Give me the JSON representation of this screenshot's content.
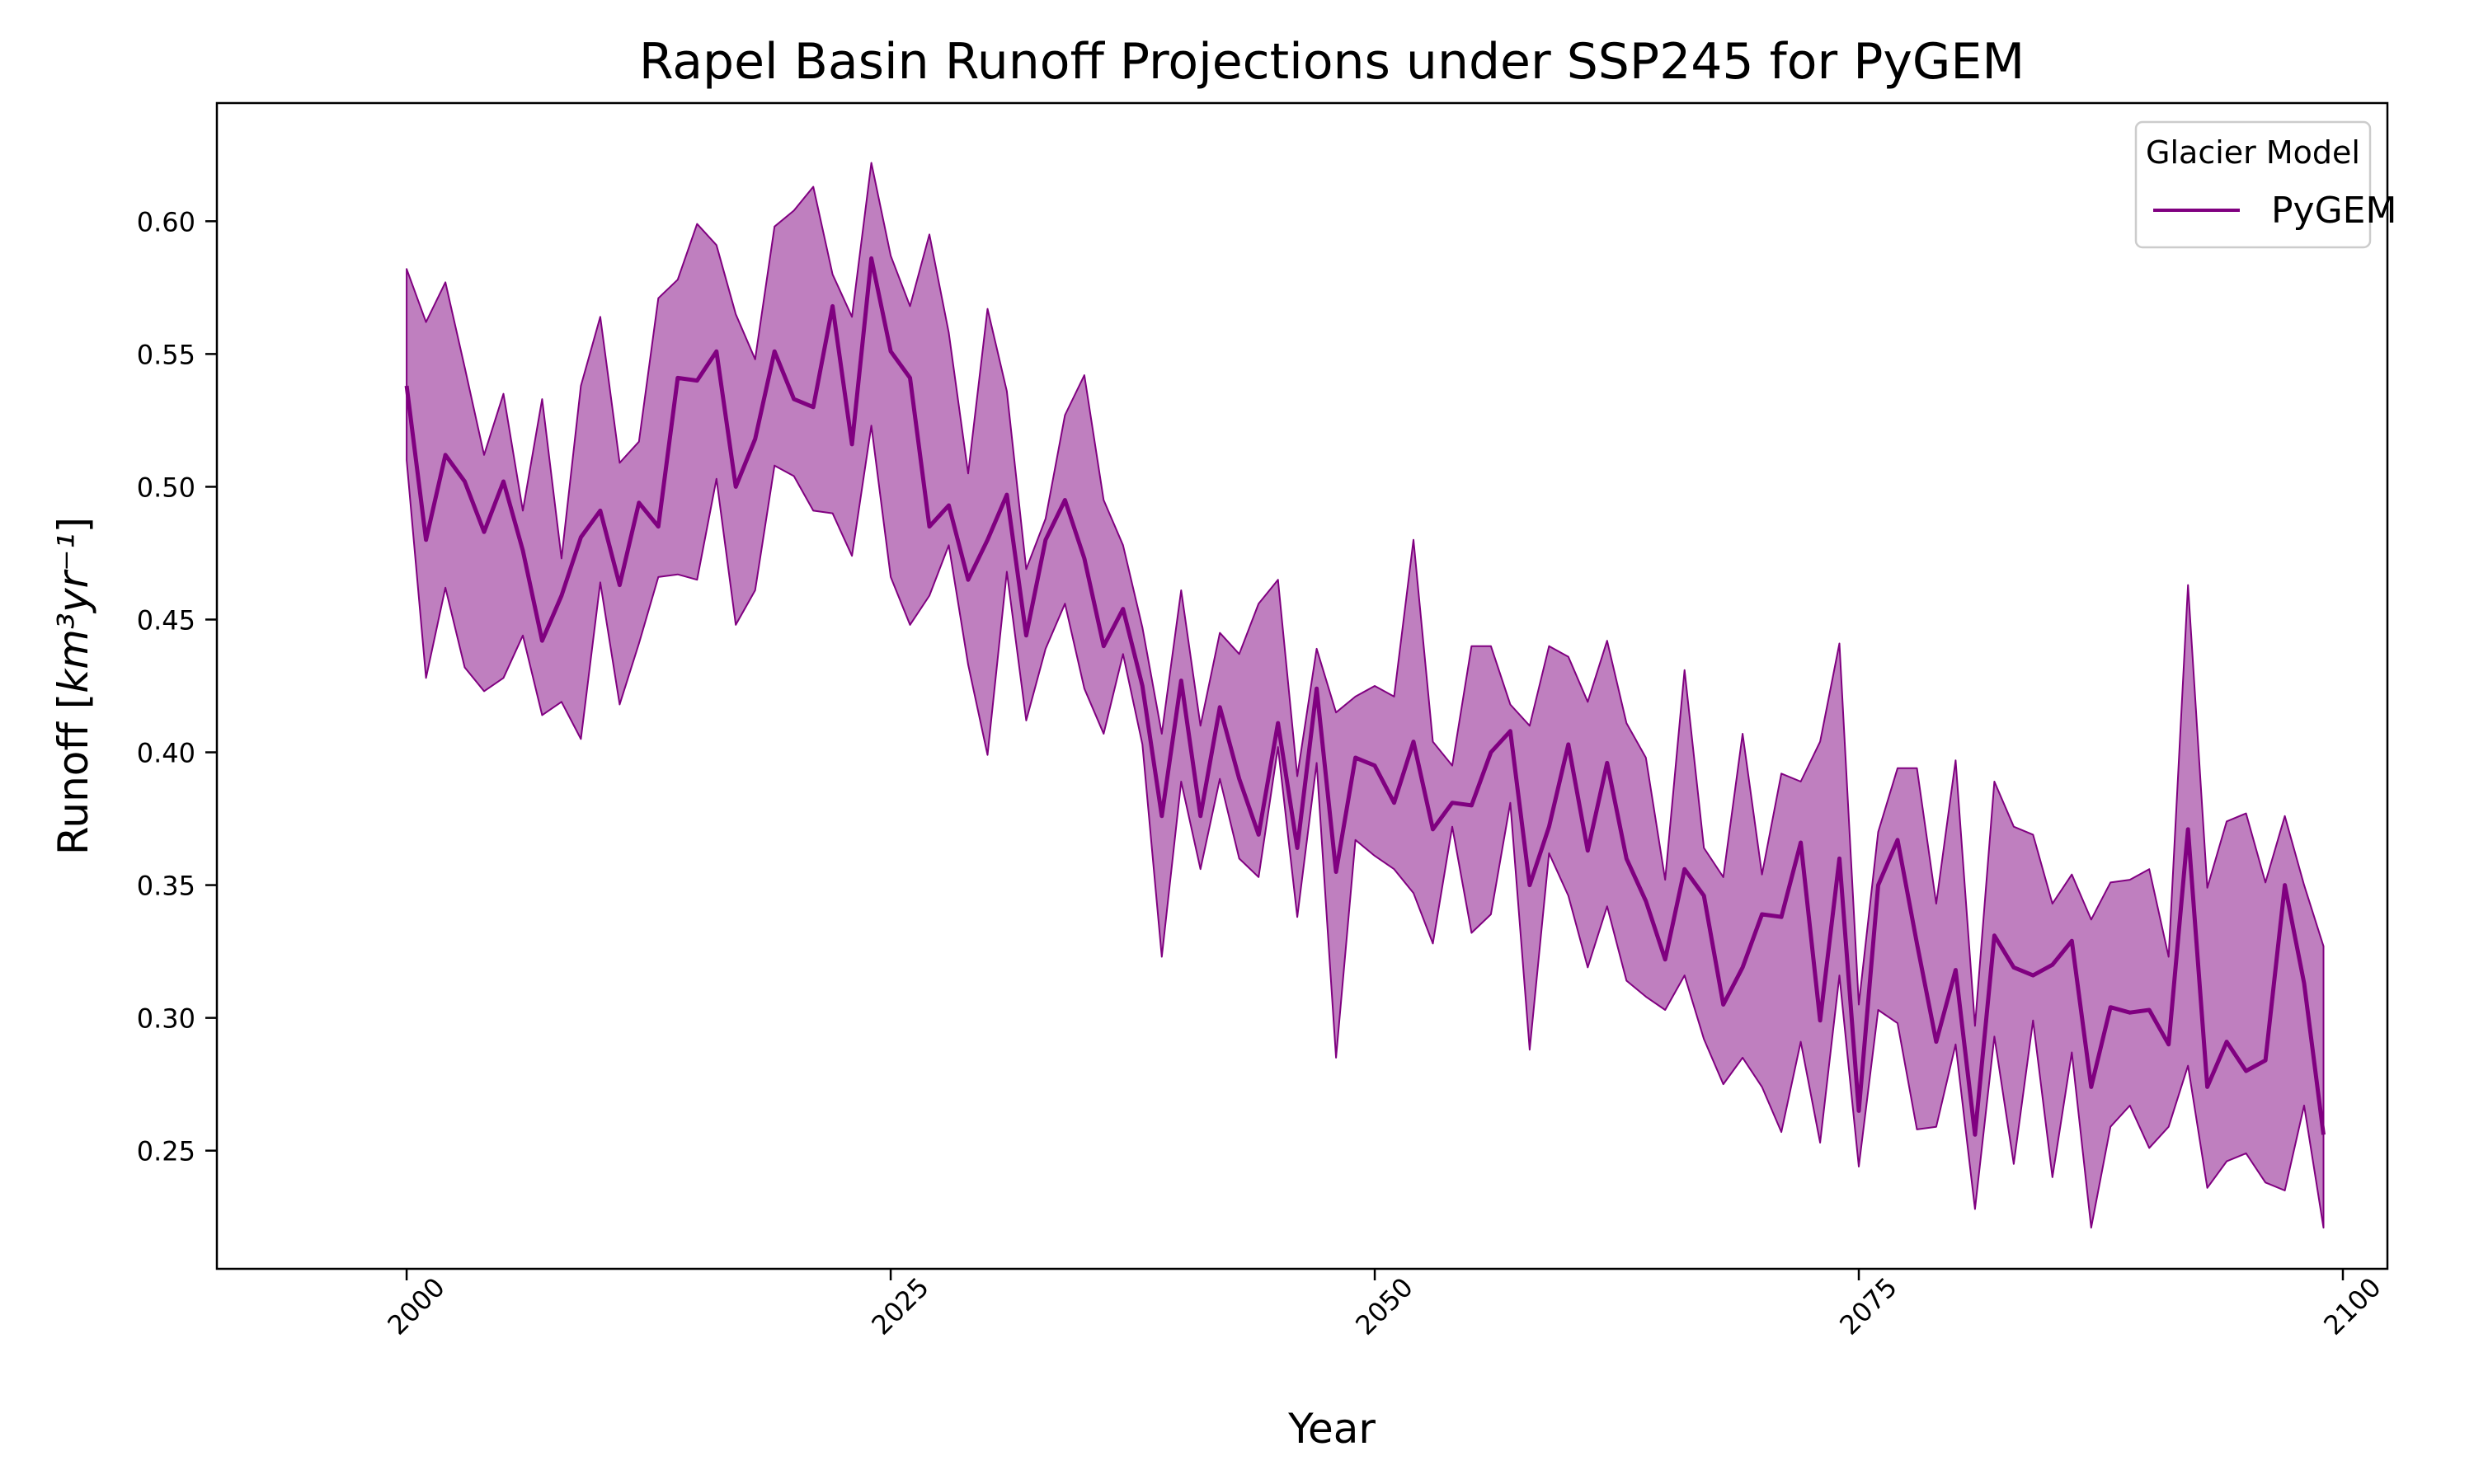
{
  "chart_data": {
    "type": "line",
    "title": "Rapel Basin Runoff Projections under SSP245 for PyGEM",
    "xlabel": "Year",
    "ylabel_main": "Runoff [",
    "ylabel_unit": "km³yr⁻¹",
    "ylabel_close": "]",
    "xlim": [
      1990.2,
      2102.3
    ],
    "ylim": [
      0.2055,
      0.6445
    ],
    "x_ticks": [
      2000,
      2025,
      2050,
      2075,
      2100
    ],
    "y_ticks": [
      0.25,
      0.3,
      0.35,
      0.4,
      0.45,
      0.5,
      0.55,
      0.6
    ],
    "y_tick_labels": [
      "0.25",
      "0.30",
      "0.35",
      "0.40",
      "0.45",
      "0.50",
      "0.55",
      "0.60"
    ],
    "grid": false,
    "legend": {
      "title": "Glacier Model",
      "placement": "top-right",
      "entries": [
        "PyGEM"
      ]
    },
    "colors": {
      "line": "#800080",
      "band": "#bf7fbf"
    },
    "x": [
      2000,
      2001,
      2002,
      2003,
      2004,
      2005,
      2006,
      2007,
      2008,
      2009,
      2010,
      2011,
      2012,
      2013,
      2014,
      2015,
      2016,
      2017,
      2018,
      2019,
      2020,
      2021,
      2022,
      2023,
      2024,
      2025,
      2026,
      2027,
      2028,
      2029,
      2030,
      2031,
      2032,
      2033,
      2034,
      2035,
      2036,
      2037,
      2038,
      2039,
      2040,
      2041,
      2042,
      2043,
      2044,
      2045,
      2046,
      2047,
      2048,
      2049,
      2050,
      2051,
      2052,
      2053,
      2054,
      2055,
      2056,
      2057,
      2058,
      2059,
      2060,
      2061,
      2062,
      2063,
      2064,
      2065,
      2066,
      2067,
      2068,
      2069,
      2070,
      2071,
      2072,
      2073,
      2074,
      2075,
      2076,
      2077,
      2078,
      2079,
      2080,
      2081,
      2082,
      2083,
      2084,
      2085,
      2086,
      2087,
      2088,
      2089,
      2090,
      2091,
      2092,
      2093,
      2094,
      2095,
      2096,
      2097,
      2098,
      2099
    ],
    "series": [
      {
        "name": "PyGEM",
        "values": [
          0.538,
          0.48,
          0.512,
          0.502,
          0.483,
          0.502,
          0.476,
          0.442,
          0.459,
          0.481,
          0.491,
          0.463,
          0.494,
          0.485,
          0.541,
          0.54,
          0.551,
          0.5,
          0.518,
          0.551,
          0.533,
          0.53,
          0.568,
          0.516,
          0.586,
          0.551,
          0.541,
          0.485,
          0.493,
          0.465,
          0.48,
          0.497,
          0.444,
          0.48,
          0.495,
          0.473,
          0.44,
          0.454,
          0.425,
          0.376,
          0.427,
          0.376,
          0.417,
          0.39,
          0.369,
          0.411,
          0.364,
          0.424,
          0.355,
          0.398,
          0.395,
          0.381,
          0.404,
          0.371,
          0.381,
          0.38,
          0.4,
          0.408,
          0.35,
          0.372,
          0.403,
          0.363,
          0.396,
          0.36,
          0.344,
          0.322,
          0.356,
          0.346,
          0.305,
          0.319,
          0.339,
          0.338,
          0.366,
          0.299,
          0.36,
          0.265,
          0.35,
          0.367,
          0.328,
          0.291,
          0.318,
          0.256,
          0.331,
          0.319,
          0.316,
          0.32,
          0.329,
          0.274,
          0.304,
          0.302,
          0.303,
          0.29,
          0.371,
          0.274,
          0.291,
          0.28,
          0.284,
          0.35,
          0.313,
          0.256
        ]
      }
    ],
    "band_upper": [
      0.582,
      0.562,
      0.577,
      0.545,
      0.512,
      0.535,
      0.491,
      0.533,
      0.473,
      0.538,
      0.564,
      0.509,
      0.517,
      0.571,
      0.578,
      0.599,
      0.591,
      0.565,
      0.548,
      0.598,
      0.604,
      0.613,
      0.58,
      0.564,
      0.622,
      0.587,
      0.568,
      0.595,
      0.558,
      0.505,
      0.567,
      0.536,
      0.469,
      0.488,
      0.527,
      0.542,
      0.495,
      0.478,
      0.447,
      0.407,
      0.461,
      0.41,
      0.445,
      0.437,
      0.456,
      0.465,
      0.391,
      0.439,
      0.415,
      0.421,
      0.425,
      0.421,
      0.48,
      0.404,
      0.395,
      0.44,
      0.44,
      0.418,
      0.41,
      0.44,
      0.436,
      0.419,
      0.442,
      0.411,
      0.398,
      0.352,
      0.431,
      0.364,
      0.353,
      0.407,
      0.354,
      0.392,
      0.389,
      0.404,
      0.441,
      0.305,
      0.37,
      0.394,
      0.394,
      0.343,
      0.397,
      0.297,
      0.389,
      0.372,
      0.369,
      0.343,
      0.354,
      0.337,
      0.351,
      0.352,
      0.356,
      0.323,
      0.463,
      0.349,
      0.374,
      0.377,
      0.351,
      0.376,
      0.35,
      0.327
    ],
    "band_lower": [
      0.51,
      0.428,
      0.462,
      0.432,
      0.423,
      0.428,
      0.444,
      0.414,
      0.419,
      0.405,
      0.464,
      0.418,
      0.441,
      0.466,
      0.467,
      0.465,
      0.503,
      0.448,
      0.461,
      0.508,
      0.504,
      0.491,
      0.49,
      0.474,
      0.523,
      0.466,
      0.448,
      0.459,
      0.478,
      0.433,
      0.399,
      0.468,
      0.412,
      0.439,
      0.456,
      0.424,
      0.407,
      0.437,
      0.403,
      0.323,
      0.389,
      0.356,
      0.39,
      0.36,
      0.353,
      0.402,
      0.338,
      0.396,
      0.285,
      0.367,
      0.361,
      0.356,
      0.347,
      0.328,
      0.372,
      0.332,
      0.339,
      0.381,
      0.288,
      0.362,
      0.346,
      0.319,
      0.342,
      0.314,
      0.308,
      0.303,
      0.316,
      0.292,
      0.275,
      0.285,
      0.274,
      0.257,
      0.291,
      0.253,
      0.316,
      0.244,
      0.303,
      0.298,
      0.258,
      0.259,
      0.29,
      0.228,
      0.293,
      0.245,
      0.299,
      0.24,
      0.287,
      0.221,
      0.259,
      0.267,
      0.251,
      0.259,
      0.282,
      0.236,
      0.246,
      0.249,
      0.238,
      0.235,
      0.267,
      0.221
    ]
  }
}
